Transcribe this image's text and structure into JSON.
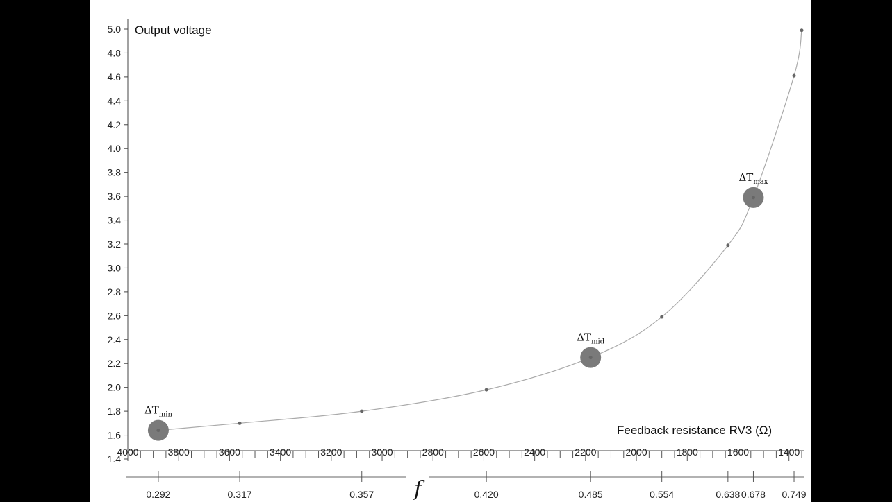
{
  "chart_data": {
    "type": "scatter",
    "title": "",
    "ylabel": "Output voltage",
    "xlabel": "Feedback resistance RV3 (Ω)",
    "secondary_xlabel": "f",
    "ylim": [
      1.4,
      5.0
    ],
    "yticks": [
      "1.4",
      "1.6",
      "1.8",
      "2.0",
      "2.2",
      "2.4",
      "2.6",
      "2.8",
      "3.0",
      "3.2",
      "3.4",
      "3.6",
      "3.8",
      "4.0",
      "4.2",
      "4.4",
      "4.6",
      "4.8",
      "5.0"
    ],
    "xlim": [
      4000,
      1350
    ],
    "xticks": [
      "4000",
      "3800",
      "3600",
      "3400",
      "3200",
      "3000",
      "2800",
      "2600",
      "2400",
      "2200",
      "2000",
      "1800",
      "1600",
      "1400"
    ],
    "points": [
      {
        "x": 3880,
        "y": 1.64
      },
      {
        "x": 3560,
        "y": 1.7
      },
      {
        "x": 3080,
        "y": 1.8
      },
      {
        "x": 2590,
        "y": 1.98
      },
      {
        "x": 2180,
        "y": 2.25
      },
      {
        "x": 1900,
        "y": 2.59
      },
      {
        "x": 1640,
        "y": 3.19
      },
      {
        "x": 1540,
        "y": 3.59
      },
      {
        "x": 1380,
        "y": 4.61
      },
      {
        "x": 1350,
        "y": 4.99
      }
    ],
    "highlighted": [
      {
        "x": 3880,
        "y": 1.64,
        "label": "ΔT",
        "sub": "min"
      },
      {
        "x": 2180,
        "y": 2.25,
        "label": "ΔT",
        "sub": "mid"
      },
      {
        "x": 1540,
        "y": 3.59,
        "label": "ΔT",
        "sub": "max"
      }
    ],
    "f_scale": [
      {
        "x": 3880,
        "label": "0.292",
        "muted": true
      },
      {
        "x": 3560,
        "label": "0.317"
      },
      {
        "x": 3080,
        "label": "0.357"
      },
      {
        "x": 2590,
        "label": "0.420"
      },
      {
        "x": 2180,
        "label": "0.485"
      },
      {
        "x": 1900,
        "label": "0.554"
      },
      {
        "x": 1640,
        "label": "0.638"
      },
      {
        "x": 1540,
        "label": "0.678",
        "muted": true
      },
      {
        "x": 1380,
        "label": "0.749"
      }
    ],
    "grid": false
  }
}
